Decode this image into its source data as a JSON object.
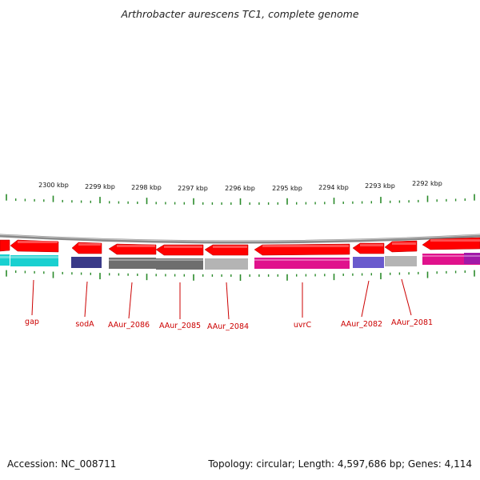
{
  "title": "Arthrobacter aurescens TC1, complete genome",
  "footer": {
    "accession": "Accession: NC_008711",
    "topology": "Topology: circular; Length: 4,597,686 bp; Genes: 4,114"
  },
  "scale_labels": [
    "2300 kbp",
    "2299 kbp",
    "2298 kbp",
    "2297 kbp",
    "2296 kbp",
    "2295 kbp",
    "2294 kbp",
    "2293 kbp",
    "2292 kbp"
  ],
  "gene_labels": [
    "gap",
    "sodA",
    "AAur_2086",
    "AAur_2085",
    "AAur_2084",
    "uvrC",
    "AAur_2082",
    "AAur_2081"
  ],
  "colors": {
    "backbone": "#8a8a8a",
    "cds_arrow": "#ff0000",
    "label": "#cc0000",
    "tick": "#2a8a2a",
    "cog_cyan": "#19d0d0",
    "cog_navy": "#3a3a88",
    "cog_gray_dark": "#6e6e6e",
    "cog_gray_light": "#b4b4b4",
    "cog_magenta": "#e0128c",
    "cog_blue_violet": "#6a5acd",
    "cog_purple": "#a01aa8"
  }
}
